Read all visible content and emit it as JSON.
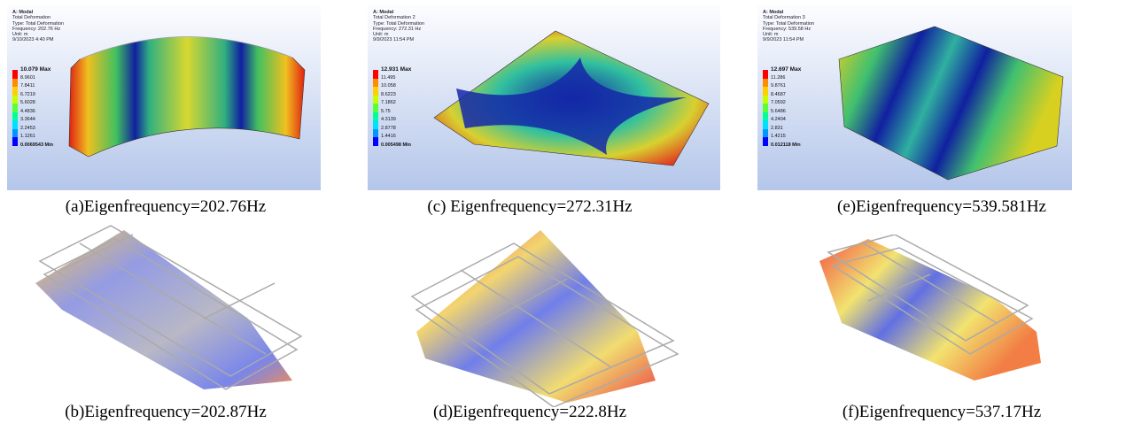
{
  "top_row": [
    {
      "info": [
        "A: Modal",
        "Total Deformation",
        "Type: Total Deformation",
        "Frequency: 202.76 Hz",
        "Unit: m",
        "9/10/2023 4:40 PM"
      ],
      "legend": [
        "10.079 Max",
        "8.9601",
        "7.8411",
        "6.7219",
        "5.6028",
        "4.4836",
        "3.3644",
        "2.2453",
        "1.1261",
        "0.0069543 Min"
      ],
      "caption": "(a)Eigenfrequency=202.76Hz"
    },
    {
      "info": [
        "A: Modal",
        "Total Deformation 2",
        "Type: Total Deformation",
        "Frequency: 272.31 Hz",
        "Unit: m",
        "9/9/2023 11:54 PM"
      ],
      "legend": [
        "12.931 Max",
        "11.495",
        "10.058",
        "8.6223",
        "7.1862",
        "5.75",
        "4.3139",
        "2.8778",
        "1.4416",
        "0.005498 Min"
      ],
      "caption": "(c) Eigenfrequency=272.31Hz"
    },
    {
      "info": [
        "A: Modal",
        "Total Deformation 3",
        "Type: Total Deformation",
        "Frequency: 539.58 Hz",
        "Unit: m",
        "9/9/2023 11:54 PM"
      ],
      "legend": [
        "12.697 Max",
        "11.286",
        "9.8761",
        "8.4687",
        "7.0592",
        "5.6486",
        "4.2404",
        "2.831",
        "1.4215",
        "0.012118 Min"
      ],
      "caption": "(e)Eigenfrequency=539.581Hz"
    }
  ],
  "bottom_row": [
    {
      "caption": "(b)Eigenfrequency=202.87Hz"
    },
    {
      "caption": "(d)Eigenfrequency=222.8Hz"
    },
    {
      "caption": "(f)Eigenfrequency=537.17Hz"
    }
  ]
}
